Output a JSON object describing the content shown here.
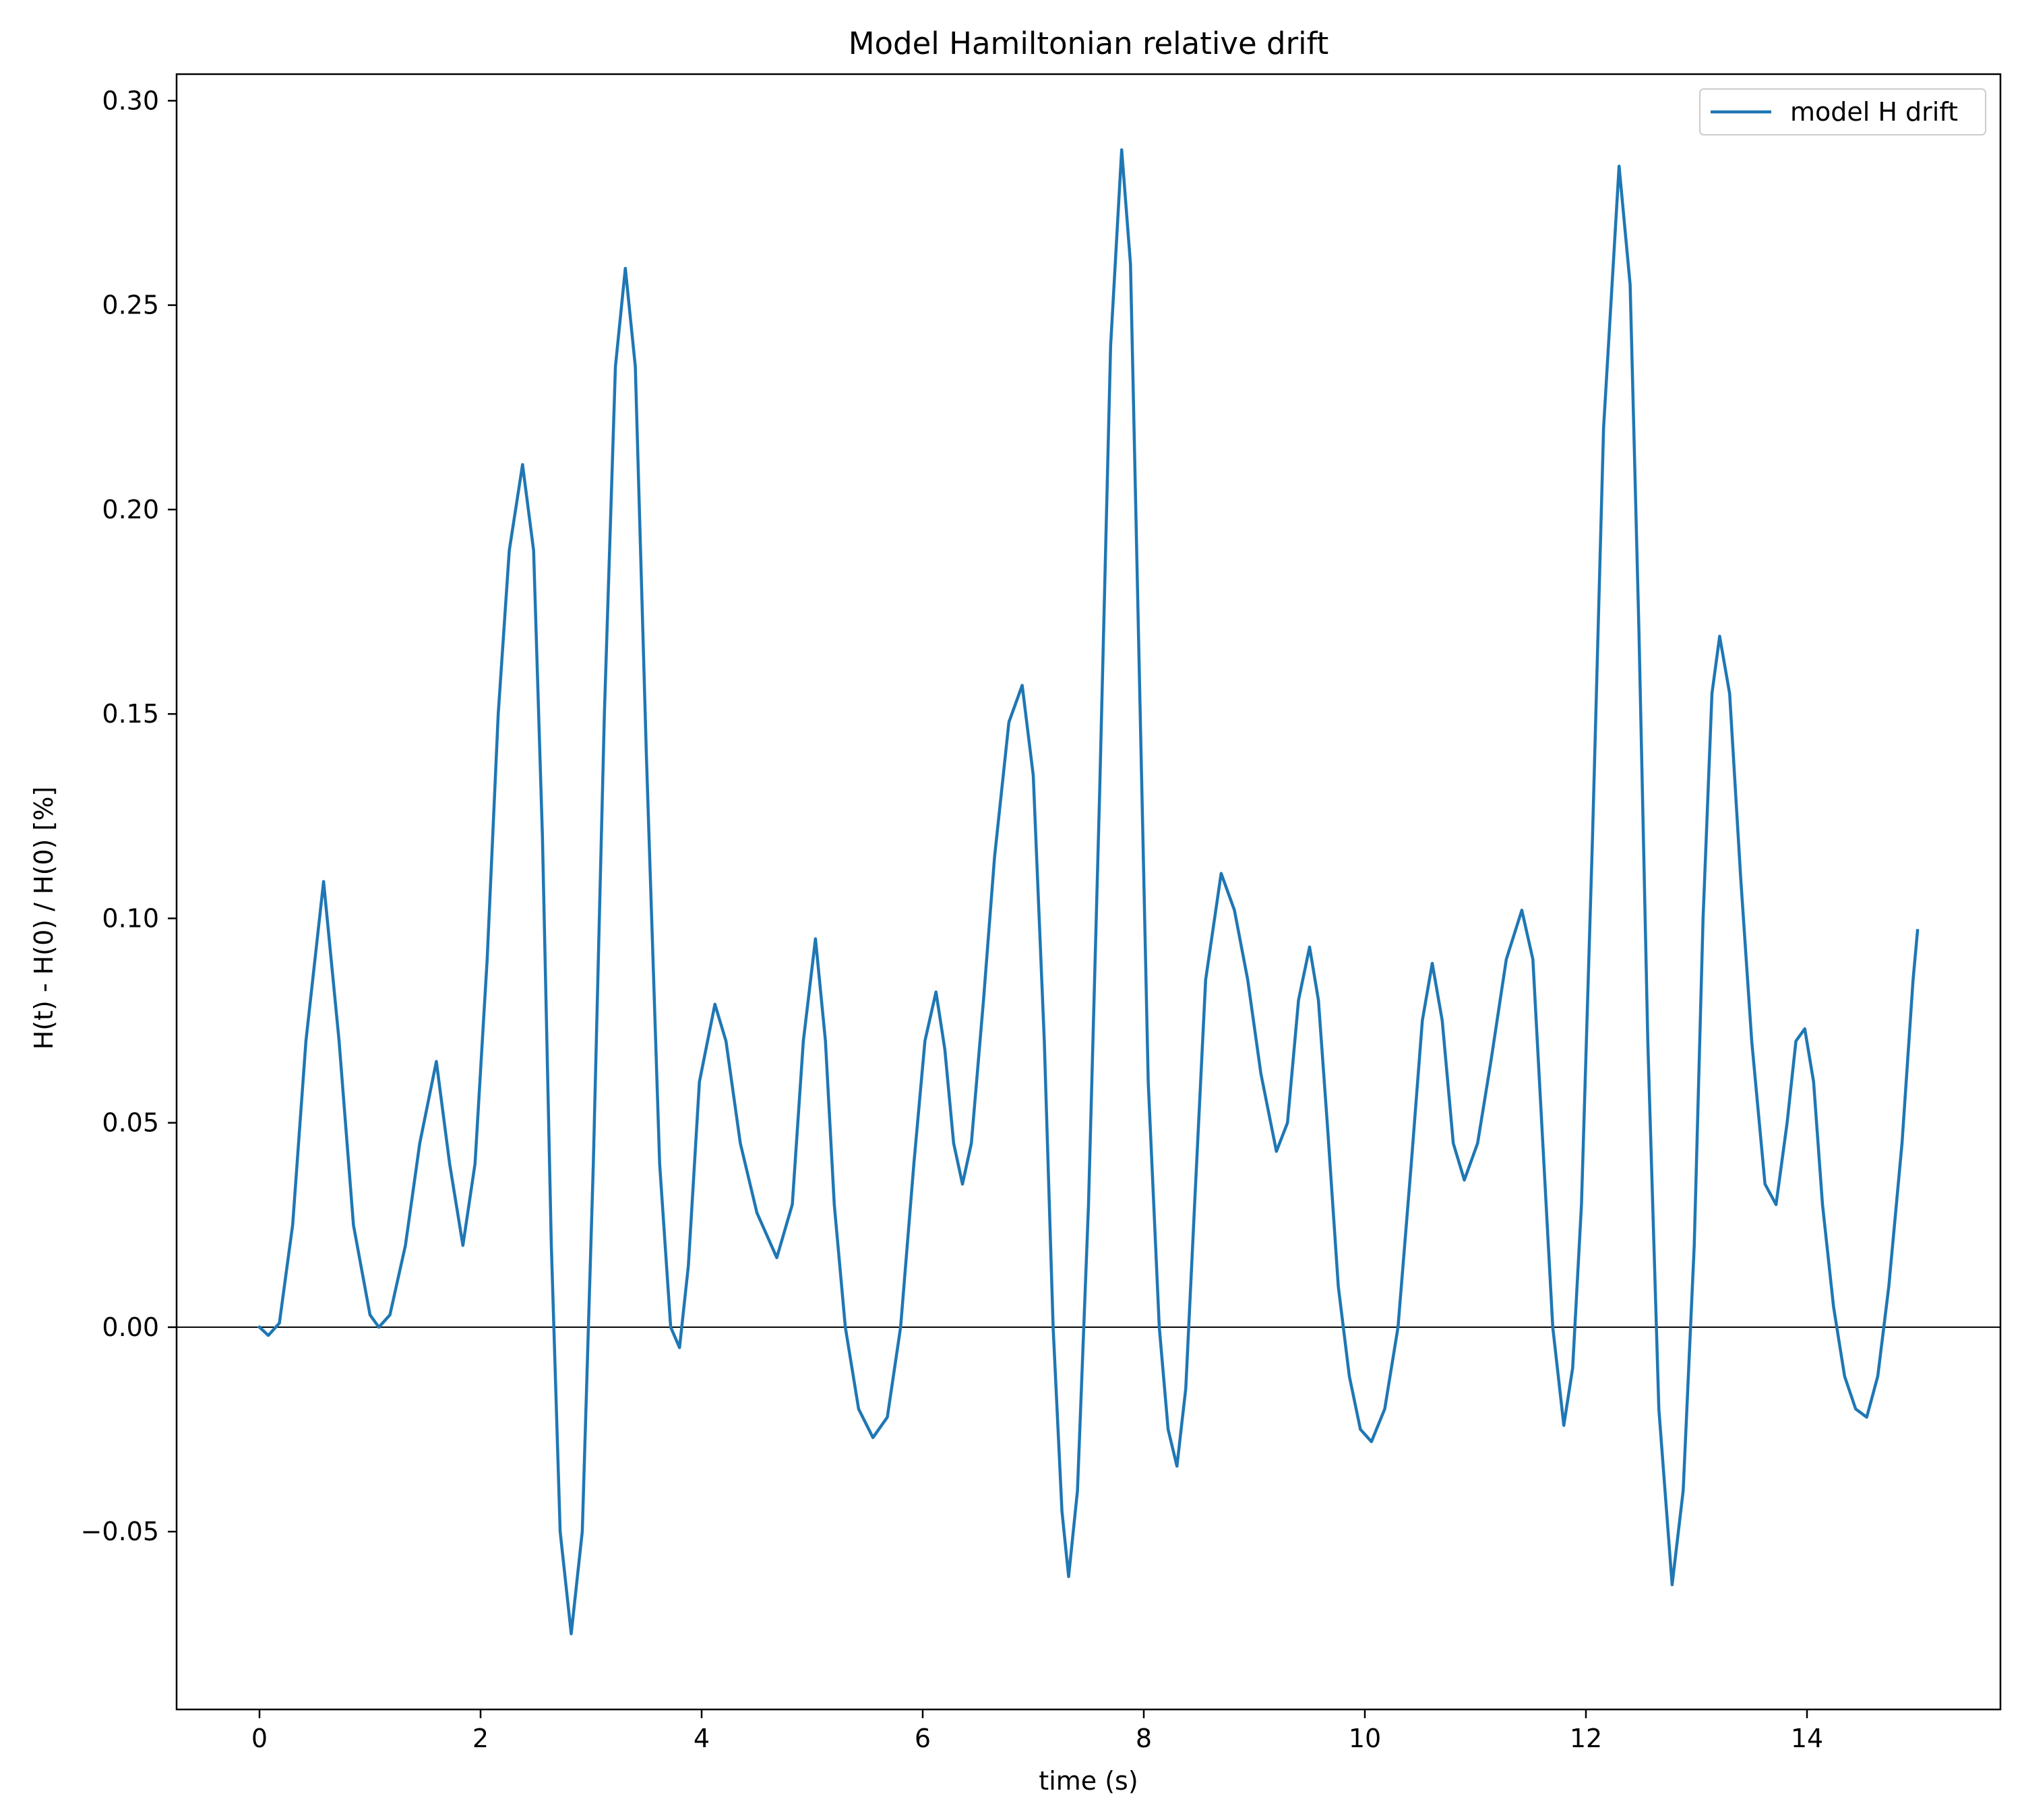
{
  "chart_data": {
    "type": "line",
    "title": "Model Hamiltonian relative drift",
    "xlabel": "time (s)",
    "ylabel": "H(t) - H(0) / H(0) [%]",
    "xlim": [
      -0.75,
      15.75
    ],
    "ylim": [
      -0.0935,
      0.3065
    ],
    "xticks": [
      0,
      2,
      4,
      6,
      8,
      10,
      12,
      14
    ],
    "xtick_labels": [
      "0",
      "2",
      "4",
      "6",
      "8",
      "10",
      "12",
      "14"
    ],
    "yticks": [
      -0.05,
      0.0,
      0.05,
      0.1,
      0.15,
      0.2,
      0.25,
      0.3
    ],
    "ytick_labels": [
      "−0.05",
      "0.00",
      "0.05",
      "0.10",
      "0.15",
      "0.20",
      "0.25",
      "0.30"
    ],
    "grid": false,
    "hline_y": 0,
    "legend_position": "top-right",
    "series": [
      {
        "name": "model H drift",
        "color": "#1f77b4",
        "points": [
          [
            0.0,
            0.0
          ],
          [
            0.08,
            -0.002
          ],
          [
            0.18,
            0.001
          ],
          [
            0.3,
            0.025
          ],
          [
            0.42,
            0.07
          ],
          [
            0.58,
            0.109
          ],
          [
            0.72,
            0.07
          ],
          [
            0.85,
            0.025
          ],
          [
            1.0,
            0.003
          ],
          [
            1.08,
            0.0
          ],
          [
            1.18,
            0.003
          ],
          [
            1.32,
            0.02
          ],
          [
            1.45,
            0.045
          ],
          [
            1.6,
            0.065
          ],
          [
            1.72,
            0.04
          ],
          [
            1.84,
            0.02
          ],
          [
            1.95,
            0.04
          ],
          [
            2.06,
            0.09
          ],
          [
            2.16,
            0.15
          ],
          [
            2.26,
            0.19
          ],
          [
            2.38,
            0.211
          ],
          [
            2.48,
            0.19
          ],
          [
            2.56,
            0.12
          ],
          [
            2.64,
            0.02
          ],
          [
            2.72,
            -0.05
          ],
          [
            2.82,
            -0.075
          ],
          [
            2.92,
            -0.05
          ],
          [
            3.02,
            0.04
          ],
          [
            3.12,
            0.15
          ],
          [
            3.22,
            0.235
          ],
          [
            3.31,
            0.259
          ],
          [
            3.4,
            0.235
          ],
          [
            3.5,
            0.14
          ],
          [
            3.62,
            0.04
          ],
          [
            3.72,
            0.0
          ],
          [
            3.8,
            -0.005
          ],
          [
            3.88,
            0.015
          ],
          [
            3.98,
            0.06
          ],
          [
            4.12,
            0.079
          ],
          [
            4.22,
            0.07
          ],
          [
            4.35,
            0.045
          ],
          [
            4.5,
            0.028
          ],
          [
            4.68,
            0.017
          ],
          [
            4.82,
            0.03
          ],
          [
            4.92,
            0.07
          ],
          [
            5.03,
            0.095
          ],
          [
            5.12,
            0.07
          ],
          [
            5.2,
            0.03
          ],
          [
            5.3,
            0.0
          ],
          [
            5.42,
            -0.02
          ],
          [
            5.55,
            -0.027
          ],
          [
            5.68,
            -0.022
          ],
          [
            5.8,
            0.0
          ],
          [
            5.92,
            0.04
          ],
          [
            6.02,
            0.07
          ],
          [
            6.12,
            0.082
          ],
          [
            6.2,
            0.068
          ],
          [
            6.28,
            0.045
          ],
          [
            6.36,
            0.035
          ],
          [
            6.44,
            0.045
          ],
          [
            6.55,
            0.08
          ],
          [
            6.65,
            0.115
          ],
          [
            6.78,
            0.148
          ],
          [
            6.9,
            0.157
          ],
          [
            7.0,
            0.135
          ],
          [
            7.1,
            0.07
          ],
          [
            7.18,
            0.0
          ],
          [
            7.26,
            -0.045
          ],
          [
            7.32,
            -0.061
          ],
          [
            7.4,
            -0.04
          ],
          [
            7.5,
            0.03
          ],
          [
            7.6,
            0.13
          ],
          [
            7.7,
            0.24
          ],
          [
            7.8,
            0.288
          ],
          [
            7.88,
            0.26
          ],
          [
            7.96,
            0.16
          ],
          [
            8.04,
            0.06
          ],
          [
            8.14,
            0.0
          ],
          [
            8.22,
            -0.025
          ],
          [
            8.3,
            -0.034
          ],
          [
            8.38,
            -0.015
          ],
          [
            8.46,
            0.03
          ],
          [
            8.56,
            0.085
          ],
          [
            8.7,
            0.111
          ],
          [
            8.82,
            0.102
          ],
          [
            8.94,
            0.085
          ],
          [
            9.06,
            0.062
          ],
          [
            9.2,
            0.043
          ],
          [
            9.3,
            0.05
          ],
          [
            9.4,
            0.08
          ],
          [
            9.5,
            0.093
          ],
          [
            9.58,
            0.08
          ],
          [
            9.66,
            0.05
          ],
          [
            9.76,
            0.01
          ],
          [
            9.86,
            -0.012
          ],
          [
            9.96,
            -0.025
          ],
          [
            10.06,
            -0.028
          ],
          [
            10.18,
            -0.02
          ],
          [
            10.3,
            0.0
          ],
          [
            10.42,
            0.04
          ],
          [
            10.52,
            0.075
          ],
          [
            10.61,
            0.089
          ],
          [
            10.7,
            0.075
          ],
          [
            10.8,
            0.045
          ],
          [
            10.9,
            0.036
          ],
          [
            11.02,
            0.045
          ],
          [
            11.14,
            0.065
          ],
          [
            11.28,
            0.09
          ],
          [
            11.42,
            0.102
          ],
          [
            11.52,
            0.09
          ],
          [
            11.6,
            0.05
          ],
          [
            11.7,
            0.0
          ],
          [
            11.8,
            -0.024
          ],
          [
            11.88,
            -0.01
          ],
          [
            11.96,
            0.03
          ],
          [
            12.06,
            0.12
          ],
          [
            12.16,
            0.22
          ],
          [
            12.3,
            0.284
          ],
          [
            12.4,
            0.255
          ],
          [
            12.48,
            0.17
          ],
          [
            12.56,
            0.07
          ],
          [
            12.66,
            -0.02
          ],
          [
            12.78,
            -0.063
          ],
          [
            12.88,
            -0.04
          ],
          [
            12.98,
            0.02
          ],
          [
            13.06,
            0.1
          ],
          [
            13.14,
            0.155
          ],
          [
            13.21,
            0.169
          ],
          [
            13.3,
            0.155
          ],
          [
            13.4,
            0.11
          ],
          [
            13.5,
            0.07
          ],
          [
            13.62,
            0.035
          ],
          [
            13.72,
            0.03
          ],
          [
            13.82,
            0.05
          ],
          [
            13.9,
            0.07
          ],
          [
            13.98,
            0.073
          ],
          [
            14.06,
            0.06
          ],
          [
            14.14,
            0.03
          ],
          [
            14.24,
            0.005
          ],
          [
            14.34,
            -0.012
          ],
          [
            14.44,
            -0.02
          ],
          [
            14.54,
            -0.022
          ],
          [
            14.64,
            -0.012
          ],
          [
            14.74,
            0.01
          ],
          [
            14.86,
            0.045
          ],
          [
            14.96,
            0.085
          ],
          [
            15.0,
            0.097
          ]
        ]
      }
    ]
  }
}
